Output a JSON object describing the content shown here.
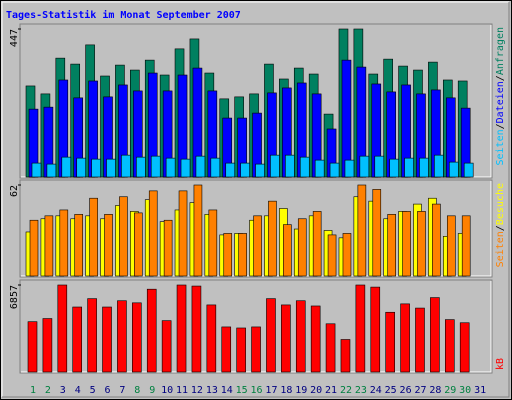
{
  "title": "Tages-Statistik im Monat September 2007",
  "legend_separator": "/",
  "chart_data": [
    {
      "type": "bar",
      "ylim": [
        0,
        447
      ],
      "yticks": [
        447
      ],
      "categories": [
        "1",
        "2",
        "3",
        "4",
        "5",
        "6",
        "7",
        "8",
        "9",
        "10",
        "11",
        "12",
        "13",
        "14",
        "15",
        "16",
        "17",
        "18",
        "19",
        "20",
        "21",
        "22",
        "23",
        "24",
        "25",
        "26",
        "27",
        "28",
        "29",
        "30",
        "31"
      ],
      "category_colors": [
        "#008040",
        "#008040",
        "#000080",
        "#000080",
        "#000080",
        "#000080",
        "#000080",
        "#008040",
        "#008040",
        "#000080",
        "#000080",
        "#000080",
        "#000080",
        "#000080",
        "#008040",
        "#008040",
        "#000080",
        "#000080",
        "#000080",
        "#000080",
        "#000080",
        "#008040",
        "#008040",
        "#000080",
        "#000080",
        "#000080",
        "#000080",
        "#000080",
        "#008040",
        "#008040",
        "#000080"
      ],
      "series": [
        {
          "name": "Anfragen",
          "color": "#008060",
          "values": [
            275,
            251,
            359,
            341,
            399,
            305,
            338,
            323,
            353,
            308,
            387,
            417,
            314,
            236,
            242,
            251,
            341,
            296,
            329,
            311,
            190,
            447,
            447,
            311,
            356,
            335,
            323,
            347,
            293,
            290,
            0
          ]
        },
        {
          "name": "Dateien",
          "color": "#0000ff",
          "values": [
            205,
            211,
            293,
            239,
            290,
            242,
            278,
            260,
            314,
            260,
            308,
            329,
            260,
            178,
            178,
            193,
            254,
            269,
            284,
            251,
            145,
            353,
            332,
            281,
            257,
            278,
            251,
            263,
            239,
            208,
            0
          ]
        },
        {
          "name": "Seiten",
          "color": "#00c0ff",
          "values": [
            42,
            39,
            60,
            57,
            54,
            54,
            66,
            60,
            63,
            57,
            54,
            63,
            57,
            42,
            42,
            39,
            66,
            66,
            60,
            51,
            42,
            51,
            63,
            63,
            54,
            57,
            57,
            66,
            45,
            42,
            0
          ]
        }
      ]
    },
    {
      "type": "bar",
      "ylim": [
        0,
        62
      ],
      "yticks": [
        62
      ],
      "series": [
        {
          "name": "Besuche",
          "color": "#ffff00",
          "values": [
            30,
            39,
            41,
            39,
            41,
            39,
            48,
            44,
            52,
            37,
            45,
            50,
            42,
            28,
            29,
            38,
            41,
            46,
            32,
            41,
            31,
            26,
            54,
            51,
            39,
            44,
            49,
            53,
            27,
            29,
            0
          ]
        },
        {
          "name": "Seiten",
          "color": "#ff8000",
          "values": [
            38,
            41,
            45,
            42,
            53,
            42,
            54,
            43,
            58,
            38,
            58,
            62,
            45,
            29,
            29,
            41,
            51,
            35,
            39,
            44,
            28,
            29,
            62,
            59,
            42,
            44,
            44,
            49,
            41,
            41,
            0
          ]
        }
      ]
    },
    {
      "type": "bar",
      "ylim": [
        0,
        6857
      ],
      "yticks": [
        6857
      ],
      "series": [
        {
          "name": "kB",
          "color": "#ff0000",
          "values": [
            3965,
            4213,
            6857,
            5122,
            5783,
            5122,
            5617,
            5452,
            6527,
            4048,
            6857,
            6774,
            5287,
            3552,
            3469,
            3552,
            5783,
            5287,
            5617,
            5204,
            3800,
            2561,
            6857,
            6692,
            4709,
            5370,
            5039,
            5865,
            4130,
            3882,
            0
          ]
        }
      ]
    }
  ]
}
